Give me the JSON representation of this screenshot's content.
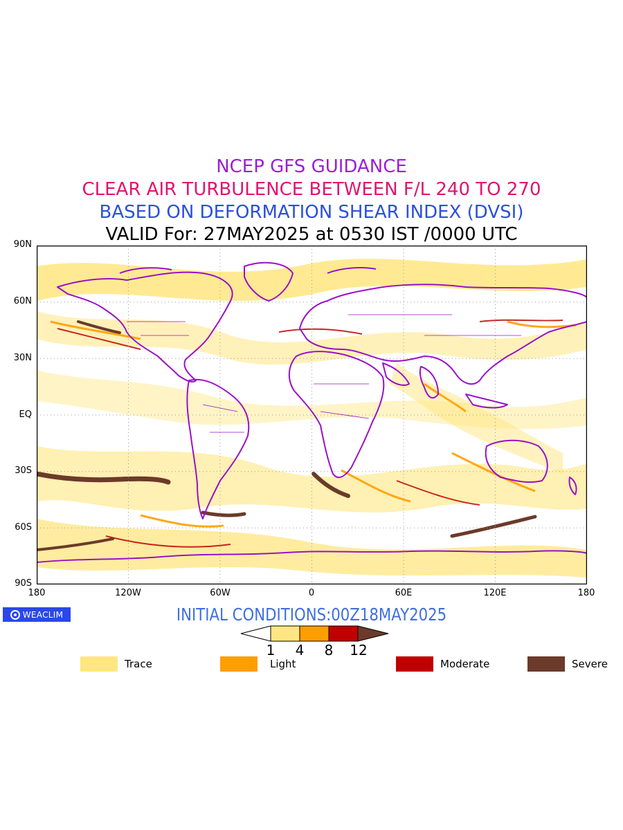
{
  "titles": {
    "line1": "NCEP GFS GUIDANCE",
    "line2": "CLEAR AIR TURBULENCE BETWEEN F/L 240 TO 270",
    "line3": "BASED ON DEFORMATION SHEAR INDEX (DVSI)",
    "line4": "VALID For: 27MAY2025 at 0530 IST /0000 UTC"
  },
  "colors": {
    "title1": "#9b1fd6",
    "title2": "#e0156e",
    "title3": "#2b4fe0",
    "title4": "#000000",
    "coastline": "#9a10c8",
    "trace": "#ffe680",
    "light": "#ff9e00",
    "moderate": "#c00000",
    "severe": "#6b3a2a",
    "brand_bg": "#2a48e8",
    "init_text": "#3f6fe0"
  },
  "axes": {
    "lat_labels": [
      "90N",
      "60N",
      "30N",
      "EQ",
      "30S",
      "60S",
      "90S"
    ],
    "lon_labels": [
      "180",
      "120W",
      "60W",
      "0",
      "60E",
      "120E",
      "180"
    ]
  },
  "brand": {
    "icon": "circle-logo-icon",
    "text": "WEACLIM"
  },
  "initial_conditions": "INITIAL CONDITIONS:00Z18MAY2025",
  "colorbar": {
    "ticks": [
      "1",
      "4",
      "8",
      "12"
    ]
  },
  "legend": [
    {
      "label": "Trace",
      "color": "#ffe680"
    },
    {
      "label": "Light",
      "color": "#ff9e00"
    },
    {
      "label": "Moderate",
      "color": "#c00000"
    },
    {
      "label": "Severe",
      "color": "#6b3a2a"
    }
  ]
}
